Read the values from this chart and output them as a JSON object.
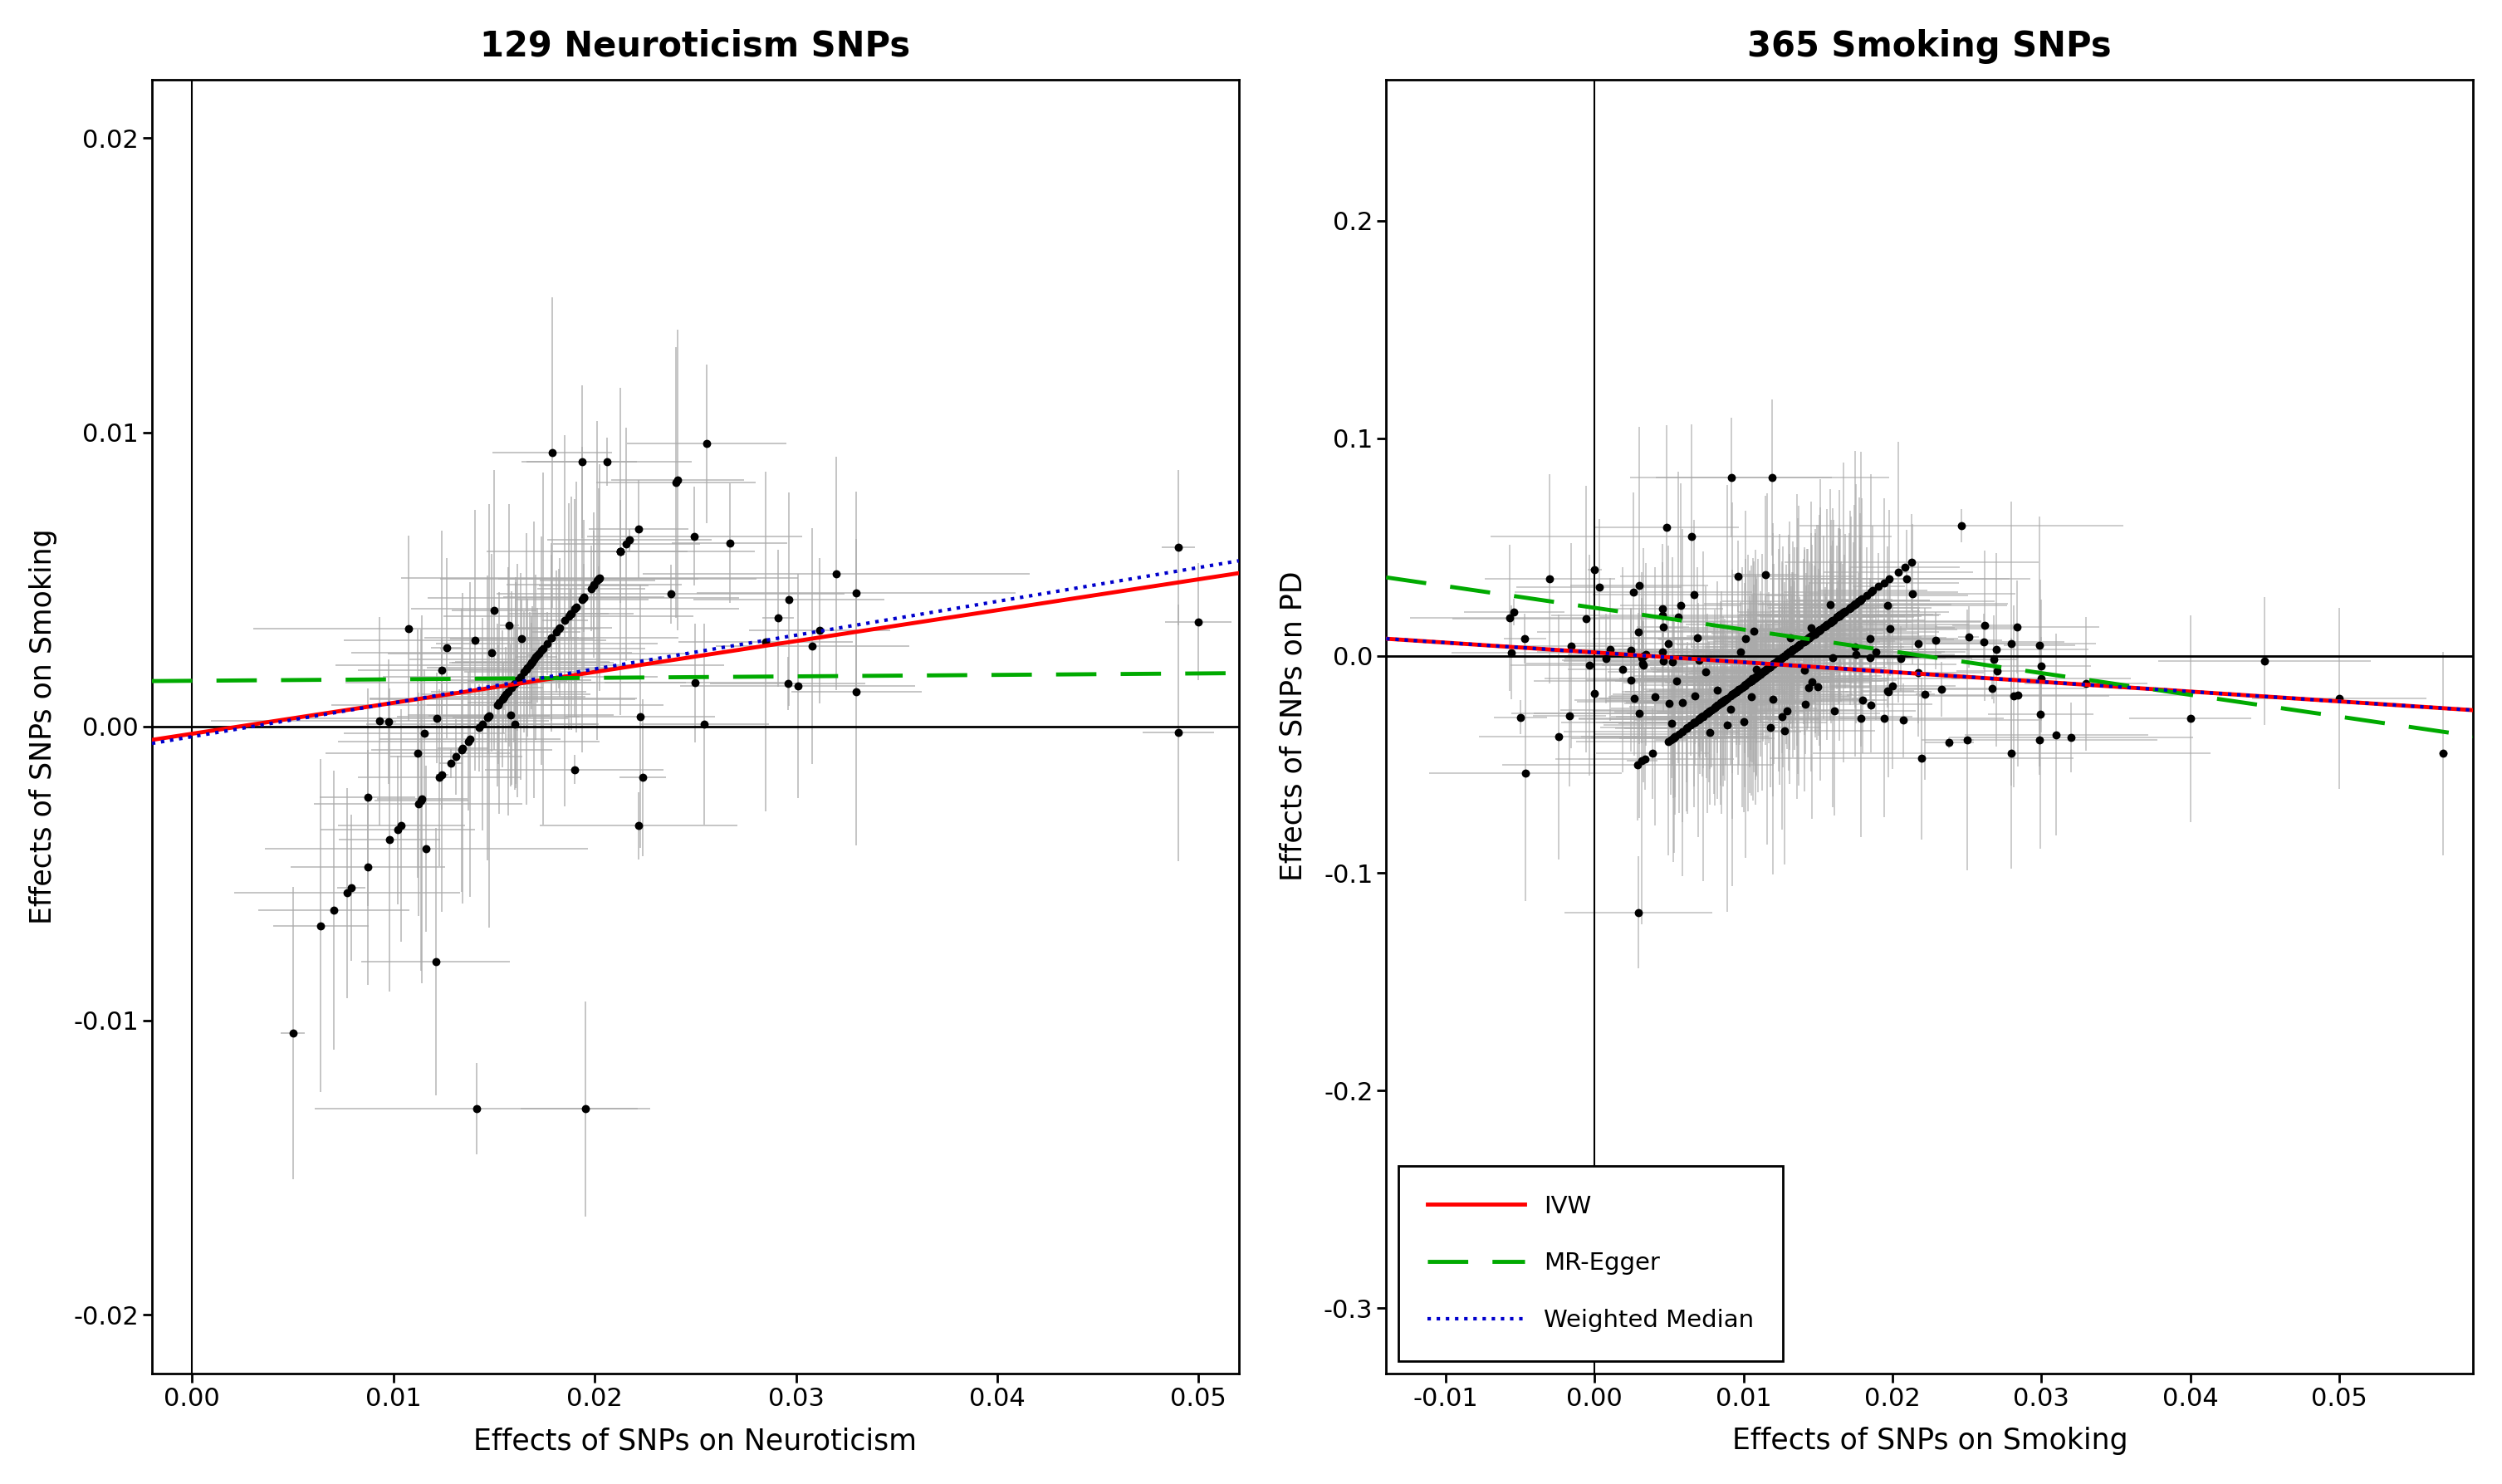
{
  "panel1": {
    "title": "129 Neuroticism SNPs",
    "xlabel": "Effects of SNPs on Neuroticism",
    "ylabel": "Effects of SNPs on Smoking",
    "xlim": [
      -0.002,
      0.052
    ],
    "ylim": [
      -0.022,
      0.022
    ],
    "xticks": [
      0.0,
      0.01,
      0.02,
      0.03,
      0.04,
      0.05
    ],
    "yticks": [
      -0.02,
      -0.01,
      0.0,
      0.01,
      0.02
    ],
    "n_snps": 129,
    "ivw_slope": 0.105,
    "ivw_intercept": -0.00025,
    "egger_slope": 0.005,
    "egger_intercept": 0.00155,
    "wm_slope": 0.115,
    "wm_intercept": -0.00035
  },
  "panel2": {
    "title": "365 Smoking SNPs",
    "xlabel": "Effects of SNPs on Smoking",
    "ylabel": "Effects of SNPs on PD",
    "xlim": [
      -0.014,
      0.059
    ],
    "ylim": [
      -0.33,
      0.265
    ],
    "xticks": [
      -0.01,
      0.0,
      0.01,
      0.02,
      0.03,
      0.04,
      0.05
    ],
    "yticks": [
      -0.3,
      -0.2,
      -0.1,
      0.0,
      0.1,
      0.2
    ],
    "n_snps": 365,
    "ivw_slope": -0.45,
    "ivw_intercept": 0.0015,
    "egger_slope": -1.0,
    "egger_intercept": 0.022,
    "wm_slope": -0.45,
    "wm_intercept": 0.0015
  },
  "colors": {
    "ivw": "#FF0000",
    "egger": "#00AA00",
    "wm": "#0000CC",
    "scatter": "#000000",
    "errorbar": "#AAAAAA",
    "zeroline": "#000000"
  },
  "legend_labels": [
    "IVW",
    "MR-Egger",
    "Weighted Median"
  ],
  "background": "#FFFFFF"
}
